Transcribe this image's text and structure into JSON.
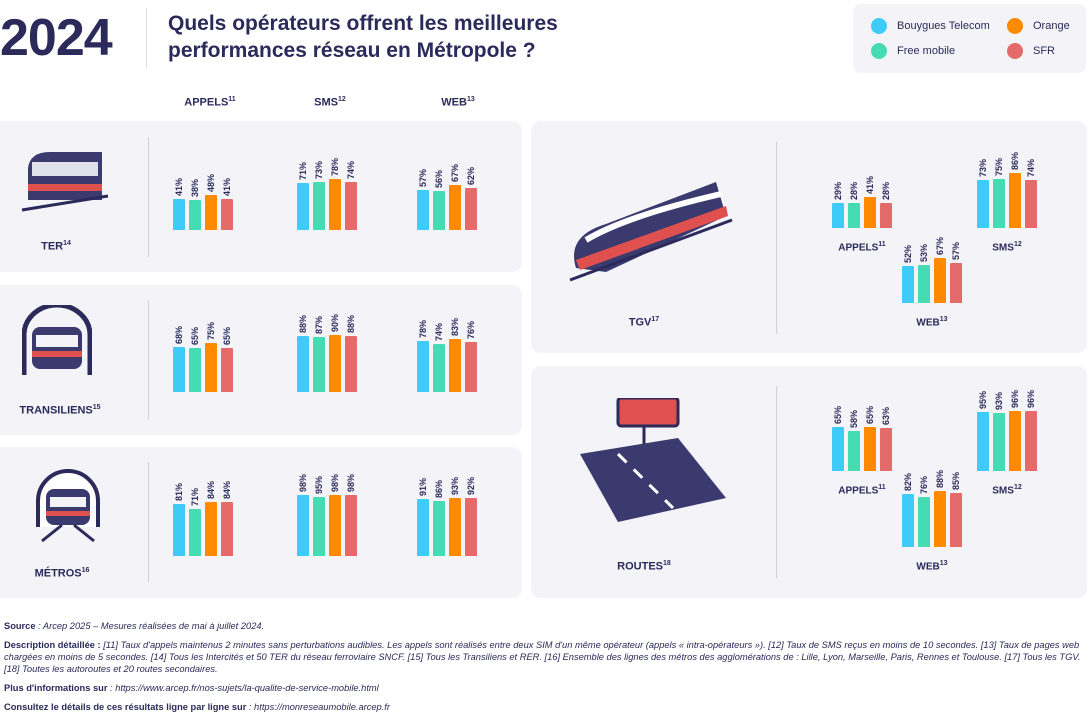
{
  "header": {
    "year": "2024",
    "title": "Quels opérateurs offrent les meilleures performances réseau en Métropole ?"
  },
  "legend": [
    {
      "name": "Bouygues Telecom",
      "color": "#3fcbf7"
    },
    {
      "name": "Orange",
      "color": "#ff8a00"
    },
    {
      "name": "Free mobile",
      "color": "#46dcb3"
    },
    {
      "name": "SFR",
      "color": "#e56b6b"
    }
  ],
  "column_headers": [
    {
      "label": "APPELS",
      "sup": "11"
    },
    {
      "label": "SMS",
      "sup": "12"
    },
    {
      "label": "WEB",
      "sup": "13"
    }
  ],
  "chart_data": {
    "type": "bar",
    "series_order": [
      "Bouygues Telecom",
      "Free mobile",
      "Orange",
      "SFR"
    ],
    "unit": "%",
    "modes": [
      {
        "name": "TER",
        "sup": "14",
        "icon": "regional-train-icon",
        "APPELS": [
          41,
          38,
          48,
          41
        ],
        "SMS": [
          71,
          73,
          78,
          74
        ],
        "WEB": [
          57,
          56,
          67,
          62
        ]
      },
      {
        "name": "TRANSILIENS",
        "sup": "15",
        "icon": "tunnel-train-icon",
        "APPELS": [
          68,
          65,
          75,
          65
        ],
        "SMS": [
          88,
          87,
          90,
          88
        ],
        "WEB": [
          78,
          74,
          83,
          76
        ]
      },
      {
        "name": "MÉTROS",
        "sup": "16",
        "icon": "metro-icon",
        "APPELS": [
          81,
          71,
          84,
          84
        ],
        "SMS": [
          98,
          95,
          98,
          98
        ],
        "WEB": [
          91,
          86,
          93,
          92
        ]
      },
      {
        "name": "TGV",
        "sup": "17",
        "icon": "high-speed-train-icon",
        "APPELS": [
          29,
          28,
          41,
          28
        ],
        "SMS": [
          73,
          75,
          86,
          74
        ],
        "WEB": [
          52,
          53,
          67,
          57
        ]
      },
      {
        "name": "ROUTES",
        "sup": "18",
        "icon": "road-icon",
        "APPELS": [
          65,
          58,
          65,
          63
        ],
        "SMS": [
          95,
          93,
          96,
          96
        ],
        "WEB": [
          82,
          76,
          88,
          85
        ]
      }
    ]
  },
  "notes": {
    "source_label": "Source",
    "source": " : Arcep 2025 – Mesures réalisées de mai à juillet 2024.",
    "desc_label": "Description détaillée : ",
    "desc": "[11] Taux d'appels maintenus 2 minutes sans perturbations audibles. Les appels sont réalisés entre deux SIM d'un même opérateur (appels « intra-opérateurs »). [12] Taux de SMS reçus en moins de 10 secondes. [13] Taux de pages web chargées en moins de 5 secondes. [14] Tous les Intercités et 50 TER du réseau ferroviaire SNCF. [15] Tous les Transiliens et RER. [16] Ensemble des lignes des métros des agglomérations de : Lille, Lyon, Marseille, Paris, Rennes et Toulouse. [17] Tous les TGV. [18] Toutes les autoroutes et 20 routes secondaires.",
    "info_label": "Plus d'informations sur",
    "info_url": " : https://www.arcep.fr/nos-sujets/la-qualite-de-service-mobile.html",
    "detail_label": "Consultez le détails de ces résultats ligne par ligne sur",
    "detail_url": " : https://monreseaumobile.arcep.fr"
  }
}
